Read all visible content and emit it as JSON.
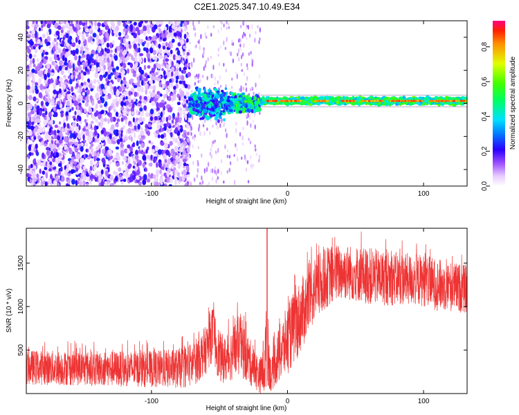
{
  "chart_data": [
    {
      "type": "heatmap",
      "title": "C2E1.2025.347.10.49.E34",
      "xlabel": "Height of straight line (km)",
      "ylabel": "Frequency (Hz)",
      "xlim": [
        -192,
        132
      ],
      "ylim": [
        -50,
        50
      ],
      "xticks": [
        -100,
        0,
        100
      ],
      "yticks": [
        -40,
        -20,
        0,
        20,
        40
      ],
      "regions": [
        {
          "x": [
            -192,
            -72
          ],
          "description_level": "sparse low amplitude noise",
          "amplitude": 0.15
        },
        {
          "x": [
            -72,
            -20
          ],
          "amplitude": 0.3
        },
        {
          "x": [
            -20,
            132
          ],
          "amplitude": 0.6
        }
      ],
      "narrowband_line": {
        "frequency": 1.5,
        "x_start": -20,
        "x_end": 132,
        "peak_amplitude": 0.95
      },
      "colorbar": {
        "label": "Normalized spectral amplitude",
        "range": [
          0.0,
          0.95
        ],
        "ticks": [
          0.0,
          0.2,
          0.4,
          0.6,
          0.8
        ]
      }
    },
    {
      "type": "line",
      "xlabel": "Height of straight line (km)",
      "ylabel": "SNR (10 * v/v)",
      "xlim": [
        -192,
        132
      ],
      "ylim": [
        0,
        1900
      ],
      "xticks": [
        -100,
        0,
        100
      ],
      "yticks": [
        500,
        1000,
        1500
      ],
      "color": "#ee3333",
      "envelope": {
        "x": [
          -192,
          -150,
          -100,
          -80,
          -70,
          -60,
          -55,
          -50,
          -45,
          -40,
          -35,
          -30,
          -25,
          -20,
          -17,
          -15,
          -12,
          -10,
          -5,
          0,
          5,
          10,
          15,
          20,
          30,
          40,
          50,
          60,
          70,
          80,
          90,
          100,
          110,
          120,
          132
        ],
        "mean": [
          300,
          290,
          280,
          290,
          330,
          500,
          700,
          420,
          380,
          480,
          560,
          420,
          300,
          200,
          350,
          600,
          180,
          320,
          480,
          620,
          760,
          900,
          1050,
          1200,
          1350,
          1400,
          1380,
          1350,
          1330,
          1320,
          1310,
          1300,
          1250,
          1230,
          1200
        ],
        "spread": [
          200,
          200,
          210,
          230,
          260,
          280,
          320,
          300,
          260,
          320,
          360,
          300,
          240,
          200,
          400,
          500,
          170,
          250,
          350,
          400,
          430,
          420,
          400,
          380,
          350,
          330,
          320,
          330,
          320,
          310,
          300,
          300,
          300,
          290,
          280
        ]
      },
      "spike": {
        "x": -15,
        "y": 1900
      }
    }
  ]
}
